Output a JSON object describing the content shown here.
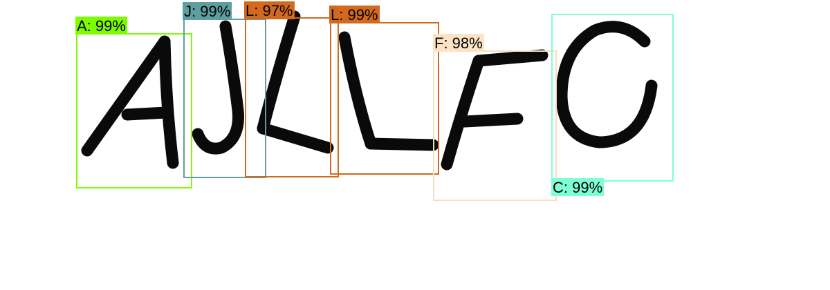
{
  "detections": [
    {
      "label": "A: 99%",
      "character": "A",
      "confidence_percent": 99,
      "color": "#7cfc00",
      "label_background": "#7cfc00"
    },
    {
      "label": "J: 99%",
      "character": "J",
      "confidence_percent": 99,
      "color": "#5f9ea0",
      "label_background": "#5f9ea0"
    },
    {
      "label": "L: 97%",
      "character": "L",
      "confidence_percent": 97,
      "color": "#d2691e",
      "label_background": "#d2691e"
    },
    {
      "label": "L: 99%",
      "character": "L",
      "confidence_percent": 99,
      "color": "#d2691e",
      "label_background": "#d2691e"
    },
    {
      "label": "F: 98%",
      "character": "F",
      "confidence_percent": 98,
      "color": "#f5dfc2",
      "label_background": "#fde3c6"
    },
    {
      "label": "C: 99%",
      "character": "C",
      "confidence_percent": 99,
      "color": "#7fffd4",
      "label_background": "#7fffd4"
    }
  ]
}
